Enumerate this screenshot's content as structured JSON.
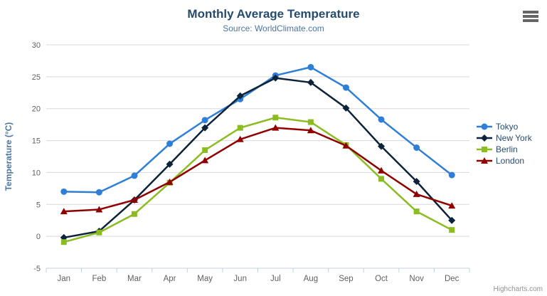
{
  "header": {
    "title": "Monthly Average Temperature",
    "subtitle": "Source: WorldClimate.com"
  },
  "credits": {
    "label": "Highcharts.com"
  },
  "chart_data": {
    "type": "line",
    "title": "Monthly Average Temperature",
    "subtitle": "Source: WorldClimate.com",
    "categories": [
      "Jan",
      "Feb",
      "Mar",
      "Apr",
      "May",
      "Jun",
      "Jul",
      "Aug",
      "Sep",
      "Oct",
      "Nov",
      "Dec"
    ],
    "series": [
      {
        "name": "Tokyo",
        "color": "#2f7ed8",
        "marker": "circle",
        "values": [
          7.0,
          6.9,
          9.5,
          14.5,
          18.2,
          21.5,
          25.2,
          26.5,
          23.3,
          18.3,
          13.9,
          9.6
        ]
      },
      {
        "name": "New York",
        "color": "#0d233a",
        "marker": "diamond",
        "values": [
          -0.2,
          0.8,
          5.7,
          11.3,
          17.0,
          22.0,
          24.8,
          24.1,
          20.1,
          14.1,
          8.6,
          2.5
        ]
      },
      {
        "name": "Berlin",
        "color": "#8bbc21",
        "marker": "square",
        "values": [
          -0.9,
          0.6,
          3.5,
          8.4,
          13.5,
          17.0,
          18.6,
          17.9,
          14.3,
          9.0,
          3.9,
          1.0
        ]
      },
      {
        "name": "London",
        "color": "#910000",
        "marker": "triangle",
        "values": [
          3.9,
          4.2,
          5.7,
          8.5,
          11.9,
          15.2,
          17.0,
          16.6,
          14.2,
          10.3,
          6.6,
          4.8
        ]
      }
    ],
    "xlabel": "",
    "ylabel": "Temperature (°C)",
    "ylim": [
      -5,
      30
    ],
    "ytick_step": 5,
    "grid": true,
    "legend_position": "right"
  },
  "theme": {
    "title_color": "#274b6d",
    "subtitle_color": "#4d759e",
    "axis_title_color": "#4d759e",
    "tick_label_color": "#606060",
    "gridline_color": "#d8d8d8",
    "axis_line_color": "#c0d0e0",
    "legend_text_color": "#274b6d",
    "credit_color": "#909090",
    "menu_icon_color": "#666666"
  }
}
